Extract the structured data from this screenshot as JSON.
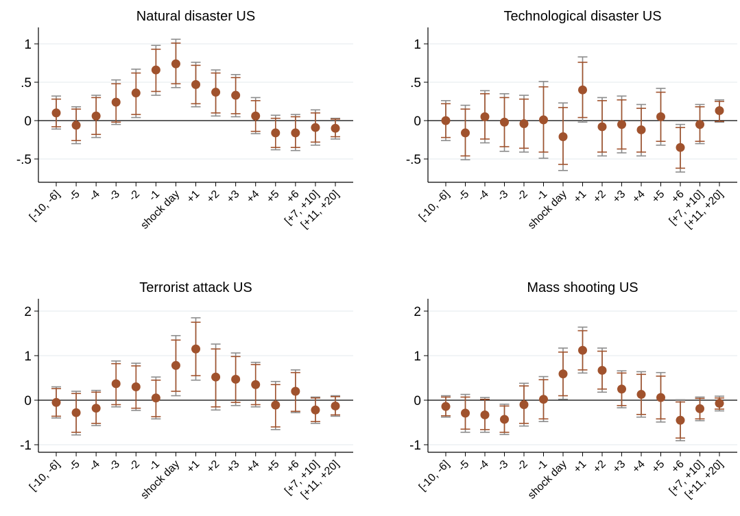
{
  "colors": {
    "point": "#A0522D",
    "ci_inner": "#A0522D",
    "ci_outer": "#8C8C8C",
    "grid": "#E3E8EC",
    "axis": "#000000"
  },
  "chart_data": [
    {
      "type": "scatter",
      "title": "Natural disaster US",
      "categories": [
        "[-10, -6]",
        "-5",
        "-4",
        "-3",
        "-2",
        "-1",
        "shock day",
        "+1",
        "+2",
        "+3",
        "+4",
        "+5",
        "+6",
        "[+7, +10]",
        "[+11, +20]"
      ],
      "yticks": [
        1,
        0.5,
        0,
        -0.5
      ],
      "ytick_labels": [
        "1",
        ".5",
        "0",
        "-.5"
      ],
      "ylim": [
        -0.8,
        1.2
      ],
      "grid": true,
      "values": [
        0.1,
        -0.06,
        0.06,
        0.24,
        0.36,
        0.66,
        0.74,
        0.47,
        0.37,
        0.33,
        0.06,
        -0.16,
        -0.16,
        -0.09,
        -0.1
      ],
      "ci_inner": [
        [
          -0.08,
          0.28
        ],
        [
          -0.26,
          0.15
        ],
        [
          -0.18,
          0.3
        ],
        [
          -0.02,
          0.48
        ],
        [
          0.08,
          0.62
        ],
        [
          0.38,
          0.93
        ],
        [
          0.48,
          1.01
        ],
        [
          0.22,
          0.72
        ],
        [
          0.1,
          0.62
        ],
        [
          0.09,
          0.56
        ],
        [
          -0.14,
          0.26
        ],
        [
          -0.35,
          0.03
        ],
        [
          -0.35,
          0.05
        ],
        [
          -0.28,
          0.1
        ],
        [
          -0.21,
          0.02
        ]
      ],
      "ci_outer": [
        [
          -0.11,
          0.32
        ],
        [
          -0.3,
          0.18
        ],
        [
          -0.22,
          0.33
        ],
        [
          -0.05,
          0.53
        ],
        [
          0.04,
          0.67
        ],
        [
          0.33,
          0.98
        ],
        [
          0.43,
          1.06
        ],
        [
          0.18,
          0.76
        ],
        [
          0.06,
          0.66
        ],
        [
          0.05,
          0.6
        ],
        [
          -0.17,
          0.3
        ],
        [
          -0.38,
          0.07
        ],
        [
          -0.39,
          0.08
        ],
        [
          -0.32,
          0.14
        ],
        [
          -0.24,
          0.03
        ]
      ]
    },
    {
      "type": "scatter",
      "title": "Technological disaster US",
      "categories": [
        "[-10, -6]",
        "-5",
        "-4",
        "-3",
        "-2",
        "-1",
        "shock day",
        "+1",
        "+2",
        "+3",
        "+4",
        "+5",
        "+6",
        "[+7, +10]",
        "[+11, +20]"
      ],
      "yticks": [
        1,
        0.5,
        0,
        -0.5
      ],
      "ytick_labels": [
        "1",
        ".5",
        "0",
        "-.5"
      ],
      "ylim": [
        -0.8,
        1.2
      ],
      "grid": true,
      "values": [
        0.0,
        -0.16,
        0.05,
        -0.02,
        -0.04,
        0.01,
        -0.21,
        0.4,
        -0.08,
        -0.05,
        -0.12,
        0.05,
        -0.35,
        -0.05,
        0.13
      ],
      "ci_inner": [
        [
          -0.22,
          0.22
        ],
        [
          -0.46,
          0.15
        ],
        [
          -0.24,
          0.35
        ],
        [
          -0.34,
          0.3
        ],
        [
          -0.36,
          0.28
        ],
        [
          -0.41,
          0.44
        ],
        [
          -0.57,
          0.17
        ],
        [
          0.04,
          0.76
        ],
        [
          -0.41,
          0.26
        ],
        [
          -0.37,
          0.27
        ],
        [
          -0.41,
          0.16
        ],
        [
          -0.27,
          0.37
        ],
        [
          -0.62,
          -0.09
        ],
        [
          -0.27,
          0.18
        ],
        [
          -0.01,
          0.25
        ]
      ],
      "ci_outer": [
        [
          -0.26,
          0.26
        ],
        [
          -0.51,
          0.2
        ],
        [
          -0.29,
          0.39
        ],
        [
          -0.4,
          0.35
        ],
        [
          -0.41,
          0.33
        ],
        [
          -0.49,
          0.51
        ],
        [
          -0.65,
          0.23
        ],
        [
          -0.02,
          0.83
        ],
        [
          -0.46,
          0.3
        ],
        [
          -0.42,
          0.32
        ],
        [
          -0.46,
          0.21
        ],
        [
          -0.32,
          0.42
        ],
        [
          -0.67,
          -0.05
        ],
        [
          -0.3,
          0.21
        ],
        [
          -0.02,
          0.27
        ]
      ]
    },
    {
      "type": "scatter",
      "title": "Terrorist attack US",
      "categories": [
        "[-10, -6]",
        "-5",
        "-4",
        "-3",
        "-2",
        "-1",
        "shock day",
        "+1",
        "+2",
        "+3",
        "+4",
        "+5",
        "+6",
        "[+7, +10]",
        "[+11, +20]"
      ],
      "yticks": [
        2,
        1,
        0,
        -1
      ],
      "ytick_labels": [
        "2",
        "1",
        "0",
        "-1"
      ],
      "ylim": [
        -1.2,
        2.2
      ],
      "grid": true,
      "values": [
        -0.05,
        -0.28,
        -0.18,
        0.37,
        0.3,
        0.05,
        0.78,
        1.15,
        0.52,
        0.47,
        0.35,
        -0.11,
        0.2,
        -0.22,
        -0.13
      ],
      "ci_inner": [
        [
          -0.36,
          0.26
        ],
        [
          -0.72,
          0.15
        ],
        [
          -0.52,
          0.18
        ],
        [
          -0.1,
          0.82
        ],
        [
          -0.18,
          0.77
        ],
        [
          -0.37,
          0.45
        ],
        [
          0.2,
          1.35
        ],
        [
          0.55,
          1.75
        ],
        [
          -0.15,
          1.15
        ],
        [
          -0.05,
          0.98
        ],
        [
          -0.1,
          0.8
        ],
        [
          -0.6,
          0.35
        ],
        [
          -0.25,
          0.62
        ],
        [
          -0.48,
          0.05
        ],
        [
          -0.33,
          0.08
        ]
      ],
      "ci_outer": [
        [
          -0.4,
          0.3
        ],
        [
          -0.78,
          0.2
        ],
        [
          -0.57,
          0.22
        ],
        [
          -0.15,
          0.88
        ],
        [
          -0.23,
          0.83
        ],
        [
          -0.42,
          0.52
        ],
        [
          0.1,
          1.45
        ],
        [
          0.45,
          1.85
        ],
        [
          -0.22,
          1.26
        ],
        [
          -0.12,
          1.06
        ],
        [
          -0.15,
          0.85
        ],
        [
          -0.66,
          0.42
        ],
        [
          -0.28,
          0.68
        ],
        [
          -0.52,
          0.07
        ],
        [
          -0.36,
          0.1
        ]
      ]
    },
    {
      "type": "scatter",
      "title": "Mass shooting US",
      "categories": [
        "[-10, -6]",
        "-5",
        "-4",
        "-3",
        "-2",
        "-1",
        "shock day",
        "+1",
        "+2",
        "+3",
        "+4",
        "+5",
        "+6",
        "[+7, +10]",
        "[+11, +20]"
      ],
      "yticks": [
        2,
        1,
        0,
        -1
      ],
      "ytick_labels": [
        "2",
        "1",
        "0",
        "-1"
      ],
      "ylim": [
        -1.2,
        2.2
      ],
      "grid": true,
      "values": [
        -0.14,
        -0.29,
        -0.33,
        -0.43,
        -0.1,
        0.02,
        0.59,
        1.12,
        0.67,
        0.25,
        0.13,
        0.06,
        -0.45,
        -0.19,
        -0.07
      ],
      "ci_inner": [
        [
          -0.35,
          0.07
        ],
        [
          -0.65,
          0.07
        ],
        [
          -0.66,
          0.02
        ],
        [
          -0.72,
          -0.13
        ],
        [
          -0.52,
          0.32
        ],
        [
          -0.42,
          0.46
        ],
        [
          0.1,
          1.08
        ],
        [
          0.68,
          1.56
        ],
        [
          0.25,
          1.1
        ],
        [
          -0.12,
          0.61
        ],
        [
          -0.32,
          0.58
        ],
        [
          -0.42,
          0.54
        ],
        [
          -0.85,
          -0.04
        ],
        [
          -0.42,
          0.04
        ],
        [
          -0.2,
          0.05
        ]
      ],
      "ci_outer": [
        [
          -0.38,
          0.1
        ],
        [
          -0.72,
          0.13
        ],
        [
          -0.72,
          0.06
        ],
        [
          -0.77,
          -0.09
        ],
        [
          -0.58,
          0.38
        ],
        [
          -0.48,
          0.53
        ],
        [
          0.02,
          1.17
        ],
        [
          0.61,
          1.64
        ],
        [
          0.18,
          1.17
        ],
        [
          -0.17,
          0.66
        ],
        [
          -0.38,
          0.64
        ],
        [
          -0.49,
          0.62
        ],
        [
          -0.91,
          0.01
        ],
        [
          -0.46,
          0.07
        ],
        [
          -0.24,
          0.09
        ]
      ]
    }
  ]
}
